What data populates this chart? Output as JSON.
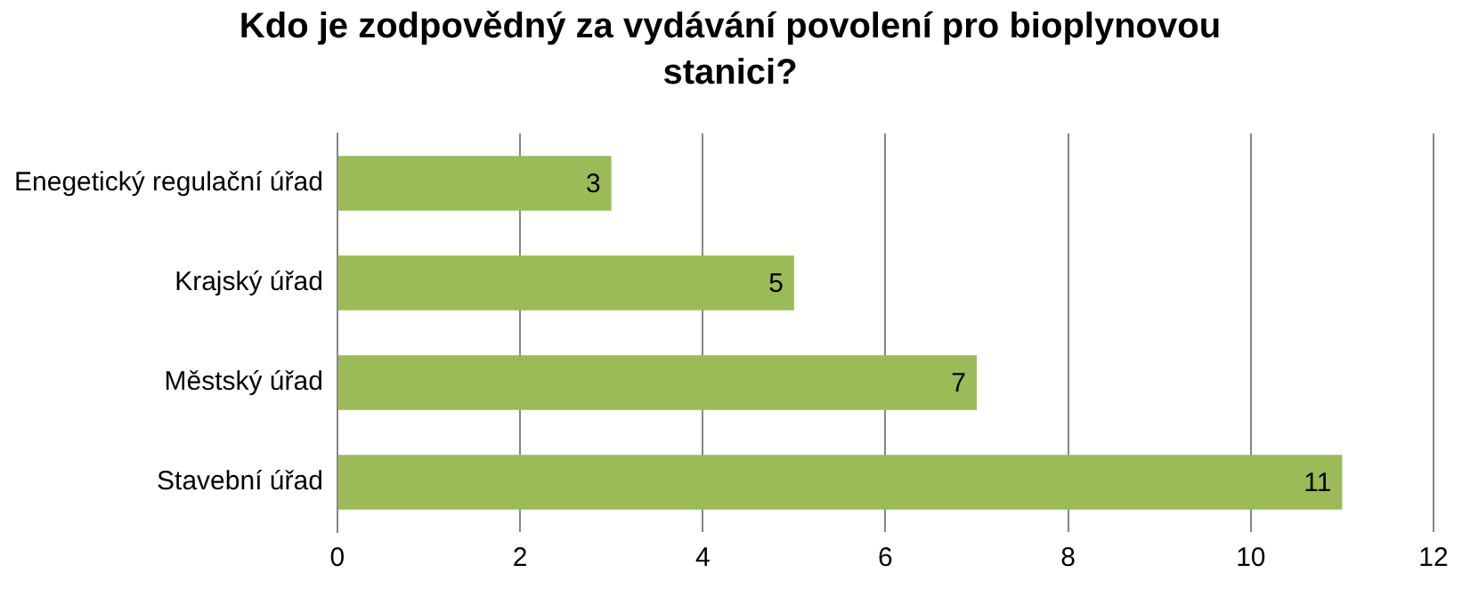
{
  "chart_data": {
    "type": "bar",
    "orientation": "horizontal",
    "title": "Kdo je zodpovědný za vydávání povolení pro bioplynovou stanici?",
    "categories": [
      "Enegetický regulační úřad",
      "Krajský úřad",
      "Městský úřad",
      "Stavební úřad"
    ],
    "values": [
      3,
      5,
      7,
      11
    ],
    "color": "#9bbb59",
    "xlim": [
      0,
      12
    ],
    "xticks": [
      0,
      2,
      4,
      6,
      8,
      10,
      12
    ],
    "grid": "x",
    "data_labels": true,
    "legend": false
  }
}
